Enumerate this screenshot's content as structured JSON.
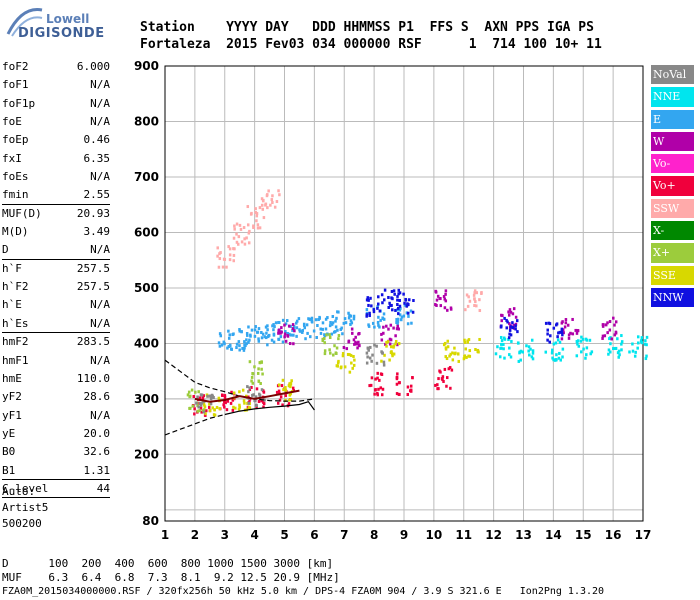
{
  "logo": {
    "top": "Lowell",
    "bottom": "DIGISONDE"
  },
  "header": {
    "line1": "Station    YYYY DAY   DDD HHMMSS P1  FFS S  AXN PPS IGA PS",
    "line2": "Fortaleza  2015 Fev03 034 000000 RSF      1  714 100 10+ 11"
  },
  "params": [
    {
      "name": "foF2",
      "value": "6.000"
    },
    {
      "name": "foF1",
      "value": "N/A"
    },
    {
      "name": "foF1p",
      "value": "N/A"
    },
    {
      "name": "foE",
      "value": "N/A"
    },
    {
      "name": "foEp",
      "value": "0.46"
    },
    {
      "name": "fxI",
      "value": "6.35"
    },
    {
      "name": "foEs",
      "value": "N/A"
    },
    {
      "name": "fmin",
      "value": "2.55"
    },
    {
      "name": "MUF(D)",
      "value": "20.93"
    },
    {
      "name": "M(D)",
      "value": "3.49"
    },
    {
      "name": "D",
      "value": "N/A"
    },
    {
      "name": "h`F",
      "value": "257.5"
    },
    {
      "name": "h`F2",
      "value": "257.5"
    },
    {
      "name": "h`E",
      "value": "N/A"
    },
    {
      "name": "h`Es",
      "value": "N/A"
    },
    {
      "name": "hmF2",
      "value": "283.5"
    },
    {
      "name": "hmF1",
      "value": "N/A"
    },
    {
      "name": "hmE",
      "value": "110.0"
    },
    {
      "name": "yF2",
      "value": "28.6"
    },
    {
      "name": "yF1",
      "value": "N/A"
    },
    {
      "name": "yE",
      "value": "20.0"
    },
    {
      "name": "B0",
      "value": "32.6"
    },
    {
      "name": "B1",
      "value": "1.31"
    },
    {
      "name": "C-level",
      "value": "44"
    }
  ],
  "auto": {
    "line1": "Auto:",
    "line2": "Artist5",
    "line3": "500200"
  },
  "legend": [
    {
      "label": "NoVal",
      "color": "#888888"
    },
    {
      "label": "NNE",
      "color": "#00e5ee"
    },
    {
      "label": "E",
      "color": "#33a6f0"
    },
    {
      "label": "W",
      "color": "#b000a8"
    },
    {
      "label": "Vo-",
      "color": "#ff22cc"
    },
    {
      "label": "Vo+",
      "color": "#f0003c"
    },
    {
      "label": "SSW",
      "color": "#ffaaaa"
    },
    {
      "label": "X-",
      "color": "#008800"
    },
    {
      "label": "X+",
      "color": "#9ccc3c"
    },
    {
      "label": "SSE",
      "color": "#d8d800"
    },
    {
      "label": "NNW",
      "color": "#1010e0"
    }
  ],
  "footer": {
    "line1": "D      100  200  400  600  800 1000 1500 3000 [km]",
    "line2": "MUF    6.3  6.4  6.8  7.3  8.1  9.2 12.5 20.9 [MHz]",
    "line3": "FZA0M_2015034000000.RSF / 320fx256h 50 kHz 5.0 km / DPS-4 FZA0M 904 / 3.9 S 321.6 E   Ion2Png 1.3.20"
  },
  "chart_data": {
    "type": "scatter",
    "title": "",
    "xlabel": "",
    "ylabel": "",
    "xlim": [
      1,
      17
    ],
    "ylim": [
      80,
      900
    ],
    "xticks": [
      1,
      2,
      3,
      4,
      5,
      6,
      7,
      8,
      9,
      10,
      11,
      12,
      13,
      14,
      15,
      16,
      17
    ],
    "yticks": [
      80,
      200,
      300,
      400,
      500,
      600,
      700,
      800,
      900
    ],
    "series": [
      {
        "name": "E",
        "color": "#33a6f0",
        "points": [
          [
            3.0,
            405
          ],
          [
            3.5,
            410
          ],
          [
            4.0,
            415
          ],
          [
            4.5,
            420
          ],
          [
            5.0,
            425
          ],
          [
            5.5,
            430
          ],
          [
            6.0,
            430
          ],
          [
            6.5,
            435
          ],
          [
            7.0,
            440
          ],
          [
            8.0,
            450
          ],
          [
            9.0,
            455
          ]
        ]
      },
      {
        "name": "NNE",
        "color": "#00e5ee",
        "points": [
          [
            12.3,
            395
          ],
          [
            13,
            390
          ],
          [
            14,
            392
          ],
          [
            15,
            395
          ],
          [
            16,
            397
          ],
          [
            16.8,
            395
          ]
        ]
      },
      {
        "name": "W",
        "color": "#b000a8",
        "points": [
          [
            5.0,
            420
          ],
          [
            7.2,
            410
          ],
          [
            8.5,
            420
          ],
          [
            10.3,
            480
          ],
          [
            12.5,
            450
          ],
          [
            14.5,
            430
          ],
          [
            15.8,
            430
          ]
        ]
      },
      {
        "name": "NNW",
        "color": "#1010e0",
        "points": [
          [
            8.0,
            470
          ],
          [
            8.5,
            480
          ],
          [
            9.0,
            475
          ],
          [
            12.5,
            430
          ],
          [
            14.0,
            425
          ]
        ]
      },
      {
        "name": "Vo+",
        "color": "#f0003c",
        "points": [
          [
            2.2,
            290
          ],
          [
            3.0,
            300
          ],
          [
            4.0,
            305
          ],
          [
            5.0,
            310
          ],
          [
            8.0,
            330
          ],
          [
            9.0,
            330
          ],
          [
            10.3,
            340
          ]
        ]
      },
      {
        "name": "SSE",
        "color": "#d8d800",
        "points": [
          [
            2.5,
            290
          ],
          [
            3.5,
            300
          ],
          [
            5.0,
            320
          ],
          [
            7.0,
            370
          ],
          [
            8.5,
            390
          ],
          [
            10.5,
            390
          ],
          [
            11.2,
            395
          ]
        ]
      },
      {
        "name": "X+",
        "color": "#9ccc3c",
        "points": [
          [
            2.0,
            300
          ],
          [
            4.0,
            350
          ],
          [
            6.5,
            400
          ]
        ]
      },
      {
        "name": "SSW",
        "color": "#ffaaaa",
        "points": [
          [
            3.0,
            560
          ],
          [
            3.5,
            600
          ],
          [
            4.0,
            630
          ],
          [
            4.5,
            660
          ],
          [
            11.3,
            480
          ]
        ]
      },
      {
        "name": "NoVal",
        "color": "#888888",
        "points": [
          [
            2.3,
            295
          ],
          [
            4.0,
            310
          ],
          [
            8.0,
            380
          ]
        ]
      }
    ],
    "trace_dashed_top": [
      [
        1,
        370
      ],
      [
        1.5,
        350
      ],
      [
        2,
        330
      ],
      [
        2.5,
        320
      ],
      [
        3,
        313
      ],
      [
        3.5,
        305
      ],
      [
        4,
        300
      ],
      [
        4.5,
        297
      ],
      [
        5,
        296
      ],
      [
        5.5,
        296
      ],
      [
        6,
        300
      ]
    ],
    "trace_dashed_bottom": [
      [
        1,
        235
      ],
      [
        1.5,
        245
      ],
      [
        2,
        255
      ],
      [
        2.5,
        265
      ],
      [
        3,
        272
      ]
    ],
    "trace_solid": [
      [
        3,
        272
      ],
      [
        3.5,
        278
      ],
      [
        4,
        282
      ],
      [
        4.5,
        285
      ],
      [
        5,
        287
      ],
      [
        5.5,
        290
      ],
      [
        5.8,
        295
      ],
      [
        6,
        280
      ]
    ],
    "trace_darkred": [
      [
        2.0,
        300
      ],
      [
        2.5,
        295
      ],
      [
        3.0,
        298
      ],
      [
        3.5,
        305
      ],
      [
        4.0,
        300
      ],
      [
        4.5,
        305
      ],
      [
        5.0,
        310
      ],
      [
        5.5,
        315
      ]
    ]
  }
}
